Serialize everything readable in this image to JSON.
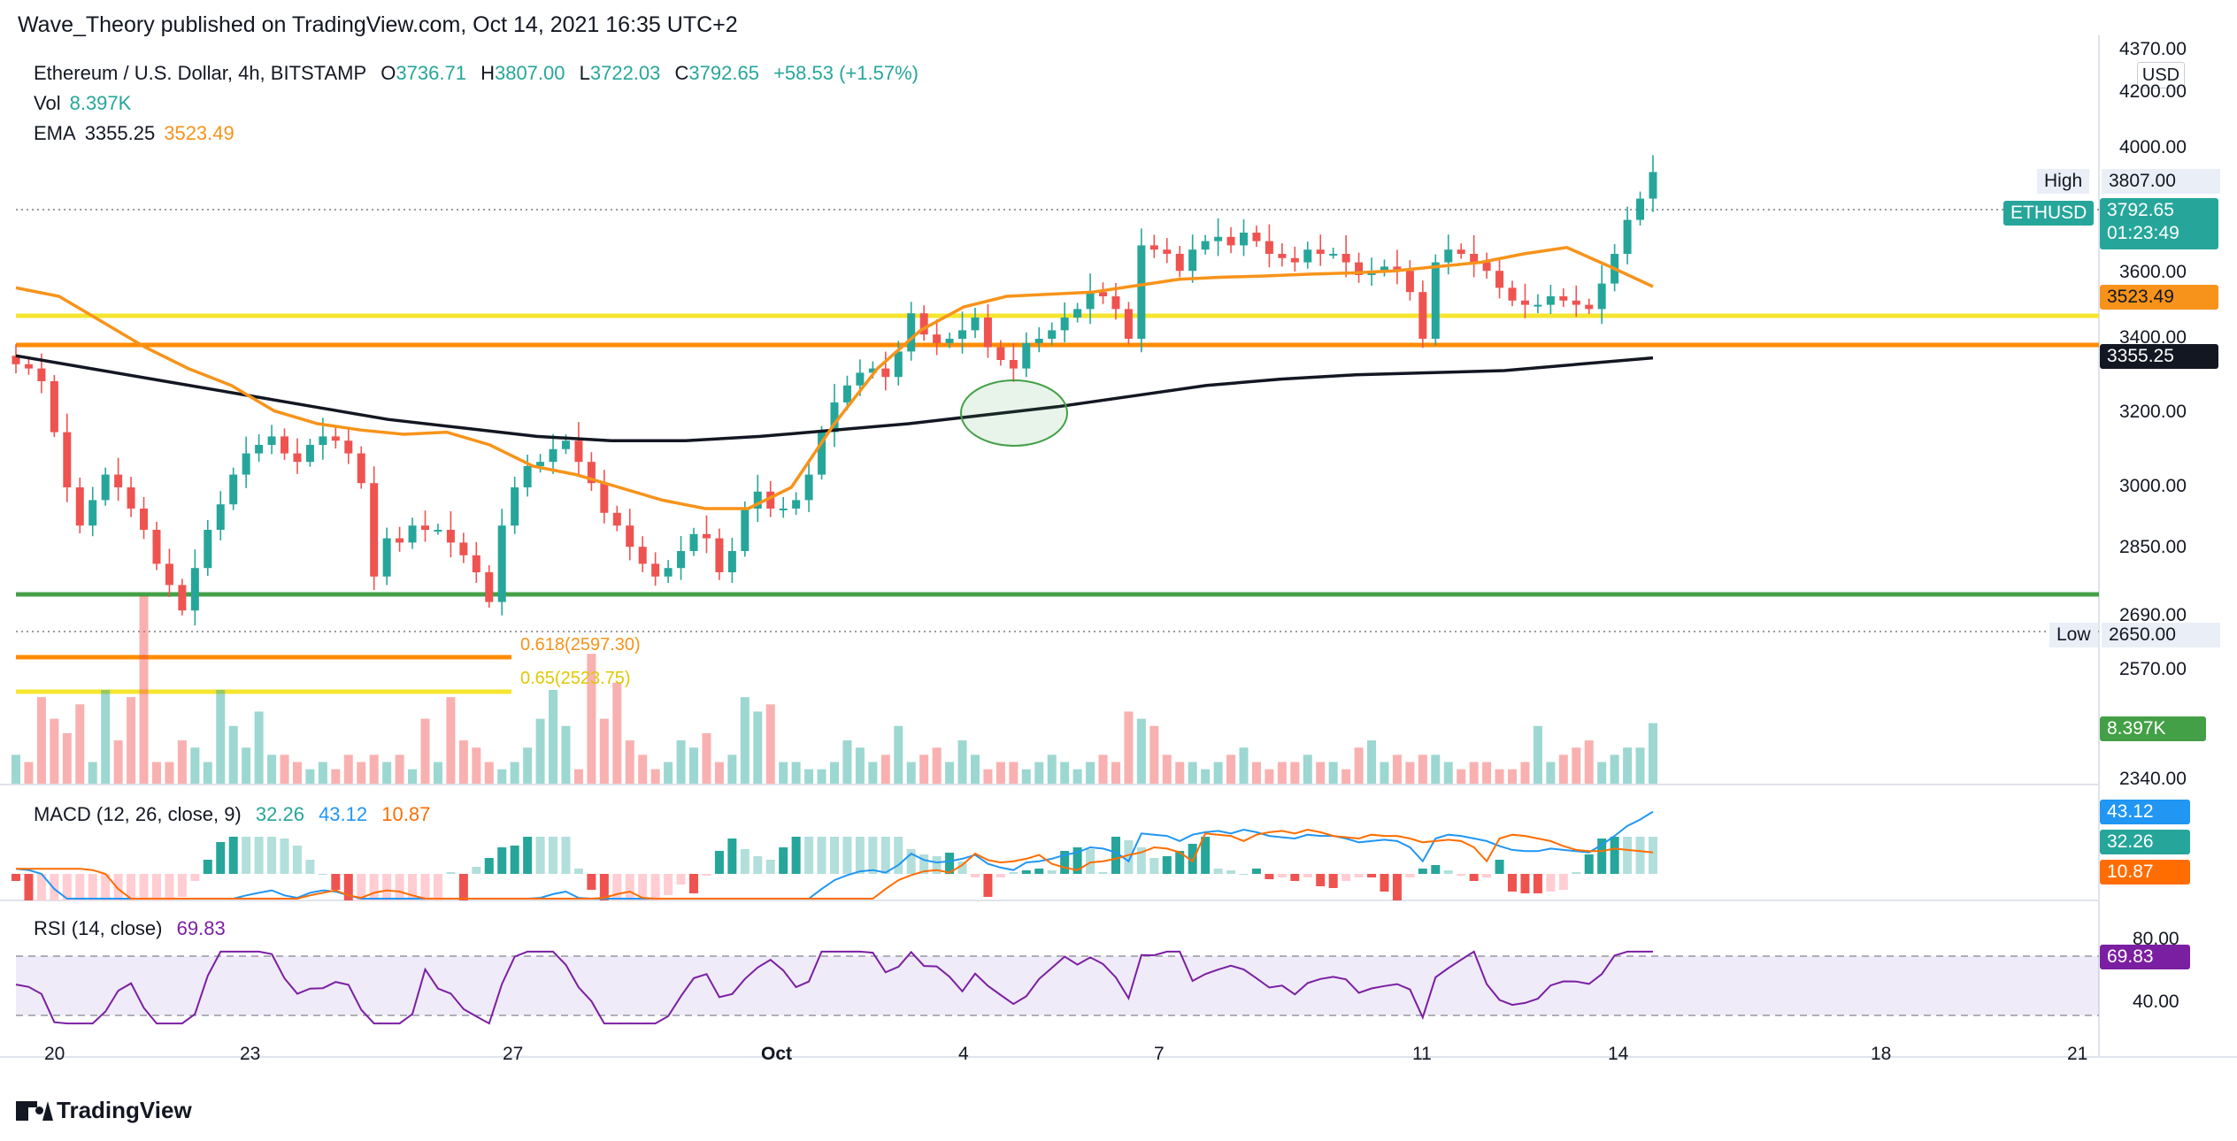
{
  "header": {
    "publisher": "Wave_Theory published on TradingView.com, Oct 14, 2021 16:35 UTC+2"
  },
  "legend": {
    "symbol": "Ethereum / U.S. Dollar, 4h, BITSTAMP",
    "o_label": "O",
    "o_value": "3736.71",
    "h_label": "H",
    "h_value": "3807.00",
    "l_label": "L",
    "l_value": "3722.03",
    "c_label": "C",
    "c_value": "3792.65",
    "change": "+58.53 (+1.57%)",
    "vol_label": "Vol",
    "vol_value": "8.397K",
    "ema_label": "EMA",
    "ema_200": "3355.25",
    "ema_50": "3523.49"
  },
  "macd_legend": {
    "label": "MACD (12, 26, close, 9)",
    "hist": "32.26",
    "macd": "43.12",
    "signal": "10.87"
  },
  "rsi_legend": {
    "label": "RSI (14, close)",
    "value": "69.83"
  },
  "price_axis": {
    "currency": "USD",
    "ticks": [
      "4370.00",
      "4200.00",
      "4000.00",
      "3600.00",
      "3400.00",
      "3200.00",
      "3000.00",
      "2850.00",
      "2690.00",
      "2570.00",
      "2340.00"
    ],
    "high_label": "High",
    "high_value": "3807.00",
    "low_label": "Low",
    "low_value": "2650.00",
    "last_label": "ETHUSD",
    "last_value": "3792.65",
    "countdown": "01:23:49",
    "ema50_tag": "3523.49",
    "ema200_tag": "3355.25",
    "vol_tag": "8.397K"
  },
  "macd_axis": {
    "macd_tag": "43.12",
    "hist_tag": "32.26",
    "signal_tag": "10.87"
  },
  "rsi_axis": {
    "ticks": [
      "80.00",
      "40.00"
    ],
    "rsi_tag": "69.83"
  },
  "time_axis": {
    "ticks": [
      "20",
      "23",
      "27",
      "Oct",
      "4",
      "7",
      "11",
      "14",
      "18",
      "21"
    ]
  },
  "fib": {
    "l618": "0.618(2597.30)",
    "l65": "0.65(2523.75)"
  },
  "brand": {
    "name": "TradingView"
  },
  "colors": {
    "up": "#26a69a",
    "down": "#ef5350",
    "ema50": "#f7931a",
    "ema200": "#131722",
    "yellow": "#f5e52f",
    "orange": "#ff8c00",
    "green": "#43a047",
    "macd": "#2196f3",
    "signal": "#ff6d00",
    "rsi": "#7b1fa2"
  },
  "chart_data": {
    "type": "candlestick",
    "symbol": "ETHUSD",
    "interval": "4h",
    "x_range": [
      "2021-09-19",
      "2021-10-21"
    ],
    "ylim": [
      2340,
      4370
    ],
    "horizontal_levels": [
      {
        "price": 3500,
        "color": "yellow"
      },
      {
        "price": 3372,
        "color": "orange"
      },
      {
        "price": 2710,
        "color": "green"
      }
    ],
    "close_series": [
      3340,
      3330,
      3300,
      3180,
      3050,
      2960,
      3020,
      3080,
      3050,
      3000,
      2950,
      2870,
      2820,
      2760,
      2860,
      2950,
      3010,
      3080,
      3130,
      3150,
      3170,
      3130,
      3110,
      3150,
      3170,
      3160,
      3130,
      3060,
      2840,
      2930,
      2920,
      2960,
      2950,
      2950,
      2920,
      2890,
      2850,
      2780,
      2960,
      3050,
      3100,
      3110,
      3140,
      3160,
      3110,
      3060,
      2990,
      2960,
      2910,
      2870,
      2840,
      2860,
      2900,
      2940,
      2930,
      2850,
      2900,
      3000,
      3040,
      3000,
      3000,
      3020,
      3080,
      3180,
      3250,
      3290,
      3320,
      3330,
      3310,
      3370,
      3460,
      3410,
      3390,
      3400,
      3420,
      3450,
      3380,
      3350,
      3330,
      3390,
      3400,
      3420,
      3450,
      3470,
      3510,
      3500,
      3470,
      3400,
      3620,
      3610,
      3600,
      3560,
      3610,
      3630,
      3640,
      3620,
      3650,
      3630,
      3600,
      3590,
      3580,
      3610,
      3600,
      3600,
      3580,
      3550,
      3560,
      3570,
      3560,
      3510,
      3400,
      3580,
      3610,
      3600,
      3580,
      3560,
      3520,
      3490,
      3480,
      3480,
      3500,
      3490,
      3480,
      3470,
      3530,
      3600,
      3680,
      3730,
      3792.65
    ],
    "ema50": [
      3520,
      3500,
      3440,
      3380,
      3330,
      3290,
      3230,
      3200,
      3185,
      3175,
      3180,
      3150,
      3100,
      3080,
      3050,
      3020,
      3000,
      3000,
      3050,
      3200,
      3330,
      3420,
      3475,
      3500,
      3505,
      3510,
      3525,
      3540,
      3545,
      3548,
      3552,
      3555,
      3560,
      3570,
      3580,
      3600,
      3615,
      3570,
      3523
    ],
    "ema200": [
      3360,
      3330,
      3300,
      3270,
      3240,
      3210,
      3190,
      3170,
      3160,
      3160,
      3170,
      3185,
      3200,
      3220,
      3240,
      3265,
      3290,
      3305,
      3315,
      3320,
      3325,
      3340,
      3355
    ],
    "volume_k": [
      4,
      3,
      12,
      9,
      7,
      11,
      3,
      13,
      6,
      12,
      26,
      3,
      3,
      6,
      5,
      3,
      13,
      8,
      5,
      10,
      4,
      4,
      3,
      2,
      3,
      2,
      4,
      3,
      4,
      3,
      4,
      2,
      9,
      3,
      12,
      6,
      5,
      3,
      2,
      3,
      5,
      9,
      13,
      8,
      2,
      18,
      9,
      14,
      6,
      4,
      2,
      3,
      6,
      5,
      7,
      3,
      4,
      12,
      10,
      11,
      3,
      3,
      2,
      2,
      3,
      6,
      5,
      3,
      4,
      8,
      3,
      4,
      5,
      3,
      6,
      4,
      2,
      3,
      3,
      2,
      3,
      4,
      3,
      2,
      3,
      4,
      3,
      10,
      9,
      8,
      4,
      3,
      3,
      2,
      3,
      4,
      5,
      3,
      2,
      3,
      3,
      4,
      3,
      3,
      2,
      5,
      6,
      3,
      4,
      3,
      4,
      4,
      3,
      2,
      3,
      3,
      2,
      2,
      3,
      8,
      3,
      4,
      5,
      6,
      3,
      4,
      5,
      5,
      8.397
    ]
  }
}
